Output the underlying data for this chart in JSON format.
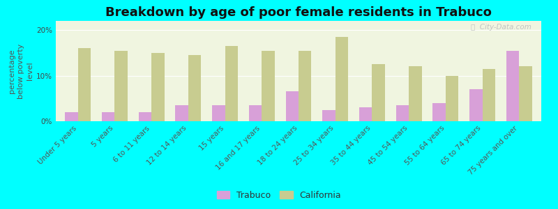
{
  "title": "Breakdown by age of poor female residents in Trabuco",
  "categories": [
    "Under 5 years",
    "5 years",
    "6 to 11 years",
    "12 to 14 years",
    "15 years",
    "16 and 17 years",
    "18 to 24 years",
    "25 to 34 years",
    "35 to 44 years",
    "45 to 54 years",
    "55 to 64 years",
    "65 to 74 years",
    "75 years and over"
  ],
  "trabuco_values": [
    2.0,
    2.0,
    2.0,
    3.5,
    3.5,
    3.5,
    6.5,
    2.5,
    3.0,
    3.5,
    4.0,
    7.0,
    15.5
  ],
  "california_values": [
    16.0,
    15.5,
    15.0,
    14.5,
    16.5,
    15.5,
    15.5,
    18.5,
    12.5,
    12.0,
    10.0,
    11.5,
    12.0
  ],
  "trabuco_color": "#d8a0d8",
  "california_color": "#c8cc90",
  "background_color": "#00ffff",
  "plot_bg_color": "#f0f5e0",
  "ylabel": "percentage\nbelow poverty\nlevel",
  "ylim": [
    0,
    22
  ],
  "yticks": [
    0,
    10,
    20
  ],
  "ytick_labels": [
    "0%",
    "10%",
    "20%"
  ],
  "watermark": "ⓘ  City-Data.com",
  "title_fontsize": 13,
  "axis_label_fontsize": 8,
  "tick_fontsize": 7.5,
  "legend_fontsize": 9
}
